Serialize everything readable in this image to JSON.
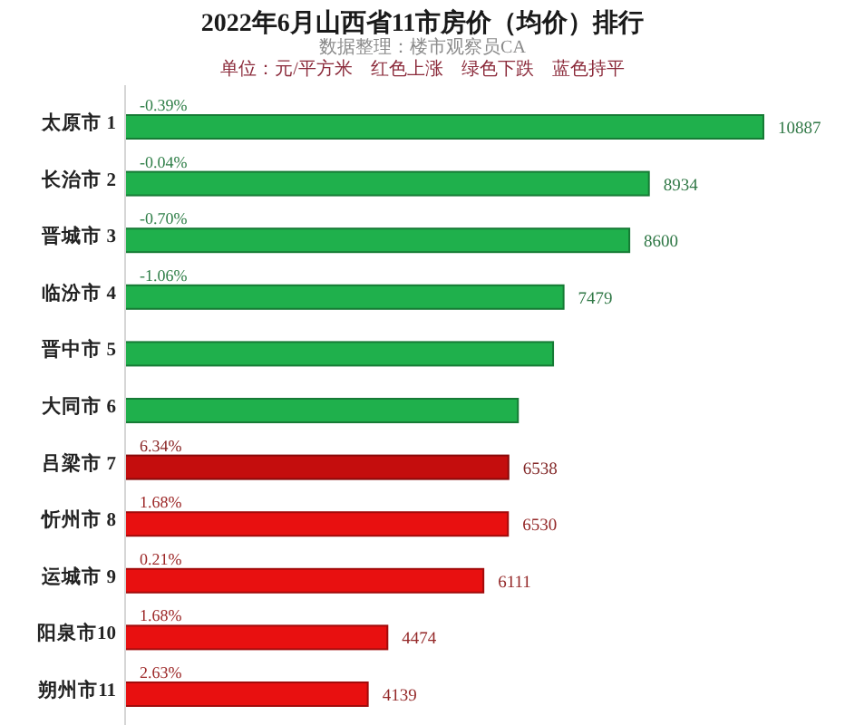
{
  "chart_data": {
    "type": "bar",
    "orientation": "horizontal",
    "title": "2022年6月山西省11市房价（均价）排行",
    "subtitle": "数据整理：楼市观察员CA",
    "categories": [
      "太原市 1",
      "长治市 2",
      "晋城市 3",
      "临汾市 4",
      "晋中市 5",
      "大同市 6",
      "吕梁市 7",
      "忻州市 8",
      "运城市 9",
      "阳泉市10",
      "朔州市11"
    ],
    "values": [
      10887,
      8934,
      8600,
      7479,
      7300,
      6700,
      6538,
      6530,
      6111,
      4474,
      4139
    ],
    "colors": [
      "#1fb04c",
      "#1fb04c",
      "#1fb04c",
      "#1fb04c",
      "#1fb04c",
      "#1fb04c",
      "#c40d0d",
      "#e81010",
      "#e81010",
      "#e81010",
      "#e81010"
    ],
    "value_labels": [
      "10887",
      "8934",
      "8600",
      "7479",
      null,
      null,
      "6538",
      "6530",
      "6111",
      "4474",
      "4139"
    ],
    "annotations": [
      "单位：元/平方米　红色上涨　绿色下跌　蓝色持平",
      {
        "text": "-0.39%",
        "y": "太原市 1"
      },
      {
        "text": "-0.04%",
        "y": "长治市 2"
      },
      {
        "text": "-0.70%",
        "y": "晋城市 3"
      },
      {
        "text": "-1.06%",
        "y": "临汾市 4"
      },
      {
        "text": "6.34%",
        "y": "吕梁市 7"
      },
      {
        "text": "1.68%",
        "y": "忻州市 8"
      },
      {
        "text": "0.21%",
        "y": "运城市 9"
      },
      {
        "text": "1.68%",
        "y": "阳泉市10"
      },
      {
        "text": "2.63%",
        "y": "朔州市11"
      }
    ]
  }
}
